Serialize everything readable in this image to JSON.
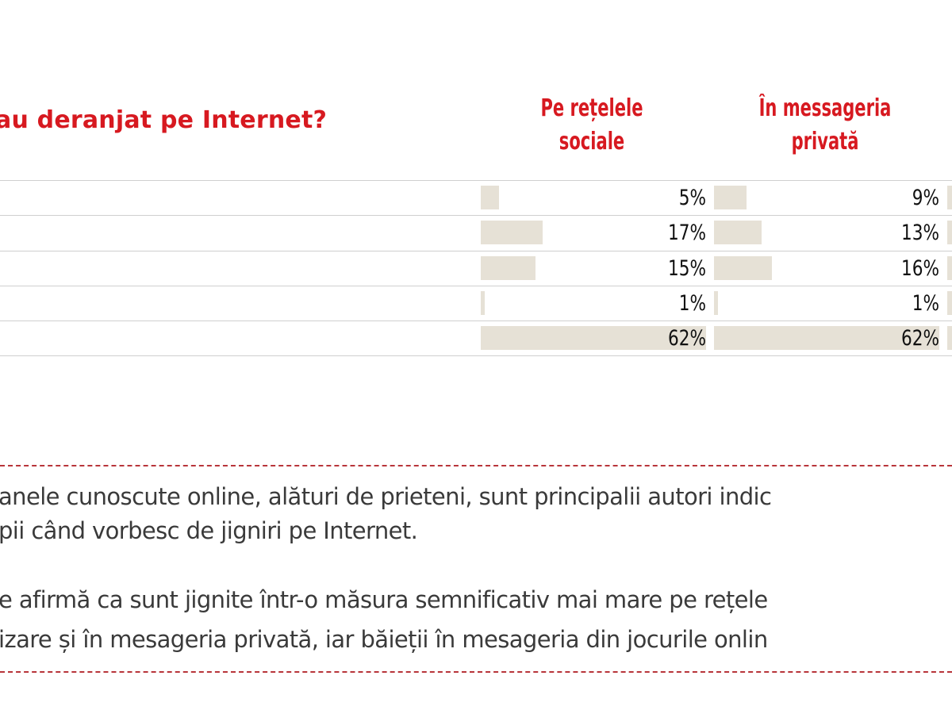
{
  "chart_data": {
    "type": "bar",
    "orientation": "horizontal",
    "title": "au deranjat pe Internet?",
    "rows": 5,
    "xlim": [
      0,
      62
    ],
    "series": [
      {
        "name": "Pe rețelele sociale",
        "values": [
          5,
          17,
          15,
          1,
          62
        ],
        "labels": [
          "5%",
          "17%",
          "15%",
          "1%",
          "62%"
        ]
      },
      {
        "name": "În messageria privată",
        "values": [
          9,
          13,
          16,
          1,
          62
        ],
        "labels": [
          "9%",
          "13%",
          "16%",
          "1%",
          "62%"
        ]
      }
    ],
    "bar_color": "#e6e1d6"
  },
  "header": {
    "title": "au deranjat pe Internet?",
    "col1_line1": "Pe rețelele",
    "col1_line2": "sociale",
    "col2_line1": "În messageria",
    "col2_line2": "privată"
  },
  "text": {
    "p1_line1": "anele cunoscute online, alături de prieteni, sunt principalii autori indic",
    "p1_line2": "pii când vorbesc de jigniri pe Internet.",
    "p2_line1": "e afirmă ca sunt jignite într-o măsura semnificativ mai mare pe rețele",
    "p2_line2": "izare și în mesageria privată, iar băieții în mesageria din jocurile onlin"
  },
  "colors": {
    "accent": "#d71920",
    "dash": "#b8353a"
  }
}
